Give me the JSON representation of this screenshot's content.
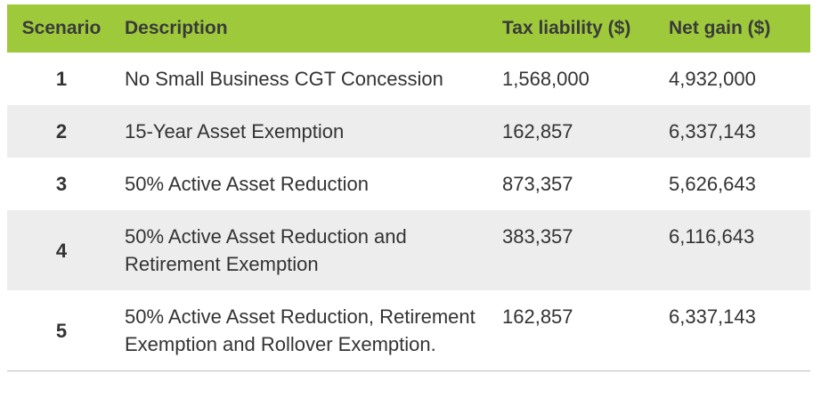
{
  "table": {
    "headers": {
      "scenario": "Scenario",
      "description": "Description",
      "tax": "Tax liability ($)",
      "net": "Net gain ($)"
    },
    "rows": [
      {
        "scenario": "1",
        "description": "No Small Business CGT Concession",
        "tax": "1,568,000",
        "net": "4,932,000"
      },
      {
        "scenario": "2",
        "description": "15-Year Asset Exemption",
        "tax": "162,857",
        "net": "6,337,143"
      },
      {
        "scenario": "3",
        "description": "50% Active Asset Reduction",
        "tax": "873,357",
        "net": "5,626,643"
      },
      {
        "scenario": "4",
        "description": "50% Active Asset Reduction and Retirement Exemption",
        "tax": "383,357",
        "net": "6,116,643"
      },
      {
        "scenario": "5",
        "description": "50% Active Asset Reduction, Retirement Exemption and Rollover Exemption.",
        "tax": "162,857",
        "net": "6,337,143"
      }
    ]
  }
}
